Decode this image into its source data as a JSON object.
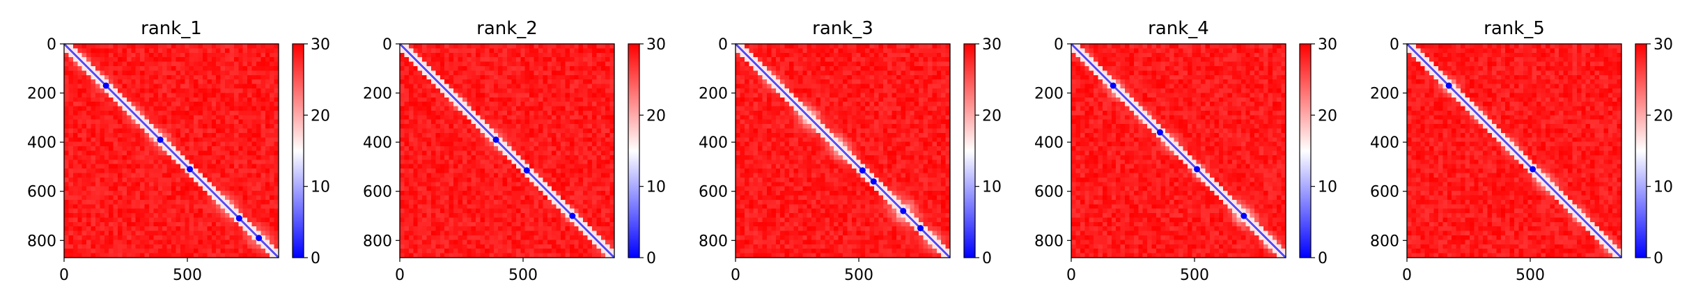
{
  "chart_data": [
    {
      "type": "heatmap",
      "title": "rank_1",
      "xticks": [
        0,
        500
      ],
      "yticks": [
        0,
        200,
        400,
        600,
        800
      ],
      "xlim": [
        0,
        870
      ],
      "ylim": [
        870,
        0
      ],
      "colorbar": {
        "ticks": [
          0,
          10,
          20,
          30
        ],
        "range": [
          0,
          30
        ],
        "cmap": [
          "#0000ff",
          "#ffffff",
          "#ff0000"
        ]
      },
      "diagonal_blobs": [
        {
          "pos": 70,
          "v": 0.55,
          "w": 45
        },
        {
          "pos": 160,
          "v": 0.5,
          "w": 45
        },
        {
          "pos": 290,
          "v": 0.55,
          "w": 50
        },
        {
          "pos": 390,
          "v": 0.5,
          "w": 55
        },
        {
          "pos": 520,
          "v": 0.35,
          "w": 20
        },
        {
          "pos": 660,
          "v": 0.55,
          "w": 60
        },
        {
          "pos": 790,
          "v": 0.5,
          "w": 60
        }
      ],
      "hot_dots": [
        170,
        390,
        510,
        710,
        790
      ]
    },
    {
      "type": "heatmap",
      "title": "rank_2",
      "xticks": [
        0,
        500
      ],
      "yticks": [
        0,
        200,
        400,
        600,
        800
      ],
      "xlim": [
        0,
        870
      ],
      "ylim": [
        870,
        0
      ],
      "colorbar": {
        "ticks": [
          0,
          10,
          20,
          30
        ],
        "range": [
          0,
          30
        ],
        "cmap": [
          "#0000ff",
          "#ffffff",
          "#ff0000"
        ]
      },
      "diagonal_blobs": [
        {
          "pos": 240,
          "v": 0.55,
          "w": 40
        },
        {
          "pos": 390,
          "v": 0.5,
          "w": 50
        },
        {
          "pos": 520,
          "v": 0.45,
          "w": 20
        },
        {
          "pos": 700,
          "v": 0.5,
          "w": 40
        },
        {
          "pos": 830,
          "v": 0.5,
          "w": 40
        }
      ],
      "hot_dots": [
        390,
        515,
        700
      ]
    },
    {
      "type": "heatmap",
      "title": "rank_3",
      "xticks": [
        0,
        500
      ],
      "yticks": [
        0,
        200,
        400,
        600,
        800
      ],
      "xlim": [
        0,
        870
      ],
      "ylim": [
        870,
        0
      ],
      "colorbar": {
        "ticks": [
          0,
          10,
          20,
          30
        ],
        "range": [
          0,
          30
        ],
        "cmap": [
          "#0000ff",
          "#ffffff",
          "#ff0000"
        ]
      },
      "diagonal_blobs": [
        {
          "pos": 150,
          "v": 0.55,
          "w": 50
        },
        {
          "pos": 300,
          "v": 0.45,
          "w": 60
        },
        {
          "pos": 420,
          "v": 0.45,
          "w": 60
        },
        {
          "pos": 520,
          "v": 0.4,
          "w": 30
        },
        {
          "pos": 680,
          "v": 0.45,
          "w": 70
        },
        {
          "pos": 800,
          "v": 0.5,
          "w": 50
        }
      ],
      "hot_dots": [
        515,
        560,
        680,
        750
      ]
    },
    {
      "type": "heatmap",
      "title": "rank_4",
      "xticks": [
        0,
        500
      ],
      "yticks": [
        0,
        200,
        400,
        600,
        800
      ],
      "xlim": [
        0,
        870
      ],
      "ylim": [
        870,
        0
      ],
      "colorbar": {
        "ticks": [
          0,
          10,
          20,
          30
        ],
        "range": [
          0,
          30
        ],
        "cmap": [
          "#0000ff",
          "#ffffff",
          "#ff0000"
        ]
      },
      "diagonal_blobs": [
        {
          "pos": 60,
          "v": 0.6,
          "w": 40
        },
        {
          "pos": 180,
          "v": 0.45,
          "w": 50
        },
        {
          "pos": 290,
          "v": 0.5,
          "w": 45
        },
        {
          "pos": 400,
          "v": 0.5,
          "w": 50
        },
        {
          "pos": 520,
          "v": 0.45,
          "w": 40
        },
        {
          "pos": 700,
          "v": 0.45,
          "w": 60
        },
        {
          "pos": 810,
          "v": 0.5,
          "w": 45
        }
      ],
      "hot_dots": [
        170,
        360,
        510,
        700
      ]
    },
    {
      "type": "heatmap",
      "title": "rank_5",
      "xticks": [
        0,
        500
      ],
      "yticks": [
        0,
        200,
        400,
        600,
        800
      ],
      "xlim": [
        0,
        870
      ],
      "ylim": [
        870,
        0
      ],
      "colorbar": {
        "ticks": [
          0,
          10,
          20,
          30
        ],
        "range": [
          0,
          30
        ],
        "cmap": [
          "#0000ff",
          "#ffffff",
          "#ff0000"
        ]
      },
      "diagonal_blobs": [
        {
          "pos": 170,
          "v": 0.45,
          "w": 45
        },
        {
          "pos": 290,
          "v": 0.5,
          "w": 40
        },
        {
          "pos": 420,
          "v": 0.5,
          "w": 45
        },
        {
          "pos": 560,
          "v": 0.5,
          "w": 55
        },
        {
          "pos": 700,
          "v": 0.55,
          "w": 50
        },
        {
          "pos": 820,
          "v": 0.55,
          "w": 45
        }
      ],
      "hot_dots": [
        170,
        510
      ]
    }
  ]
}
